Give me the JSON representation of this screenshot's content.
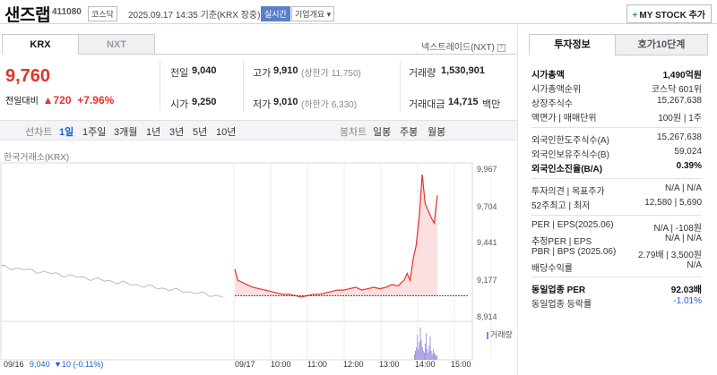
{
  "header": {
    "name": "샌즈랩",
    "code": "411080",
    "market_badge": "코스닥",
    "datetime": "2025.09.17 14:35 기준(KRX 장중)",
    "realtime_badge": "실시간",
    "company_badge": "기업개요 ▾",
    "mystock_label": "MY STOCK 추가"
  },
  "tabs": {
    "krx": "KRX",
    "nxt": "NXT"
  },
  "nxt_link": "넥스트레이드(NXT)",
  "price": {
    "current": "9,760",
    "change_label": "전일대비",
    "change": "▲720",
    "change_pct": "+7.96%"
  },
  "summary": {
    "prev_label": "전일",
    "prev": "9,040",
    "open_label": "시가",
    "open": "9,250",
    "high_label": "고가",
    "high": "9,910",
    "upper_limit": "(상한가 11,750)",
    "low_label": "저가",
    "low": "9,010",
    "lower_limit": "(하한가 6,330)",
    "volume_label": "거래량",
    "volume": "1,530,901",
    "amount_label": "거래대금",
    "amount": "14,715",
    "amount_unit": "백만"
  },
  "periods": {
    "line_label": "선차트",
    "items": [
      "1일",
      "1주일",
      "3개월",
      "1년",
      "3년",
      "5년",
      "10년"
    ],
    "candle_label": "봉차트",
    "candles": [
      "일봉",
      "주봉",
      "월봉"
    ]
  },
  "chart_data": {
    "type": "line",
    "source_label": "한국거래소(KRX)",
    "yticks": [
      "9,967",
      "9,704",
      "9,441",
      "9,177",
      "8,914"
    ],
    "ylim": [
      8914,
      9967
    ],
    "xticks": [
      "09/17",
      "10:00",
      "11:00",
      "12:00",
      "13:00",
      "14:00",
      "15:00"
    ],
    "prev_day_label": "09/16",
    "prev_day_close": "9,040",
    "prev_day_change": "▼10 (-0.11%)",
    "volume_label": "거래량",
    "series": [
      {
        "x": [
          "09:00",
          "09:05",
          "09:10",
          "09:15",
          "09:20",
          "09:25",
          "09:30",
          "09:40",
          "09:50",
          "10:00",
          "10:10",
          "10:20",
          "10:30",
          "10:40",
          "10:50",
          "11:00",
          "11:10",
          "11:20",
          "11:30",
          "11:40",
          "11:50",
          "12:00",
          "12:10",
          "12:20",
          "12:30",
          "12:40",
          "12:50",
          "13:00",
          "13:10",
          "13:20",
          "13:30",
          "13:40",
          "13:45",
          "13:50",
          "13:55",
          "14:00",
          "14:05",
          "14:10",
          "14:15",
          "14:20",
          "14:25",
          "14:30",
          "14:35"
        ],
        "values": [
          9230,
          9150,
          9140,
          9130,
          9120,
          9110,
          9100,
          9090,
          9080,
          9070,
          9060,
          9050,
          9050,
          9040,
          9030,
          9040,
          9050,
          9050,
          9060,
          9070,
          9080,
          9080,
          9090,
          9100,
          9080,
          9090,
          9100,
          9090,
          9100,
          9120,
          9110,
          9150,
          9200,
          9150,
          9300,
          9400,
          9600,
          9910,
          9700,
          9650,
          9600,
          9560,
          9760
        ]
      }
    ]
  },
  "invest": {
    "tab_on": "투자정보",
    "tab_off": "호가10단계",
    "rows1": [
      {
        "l": "시가총액",
        "r": "1,490억원",
        "bold": true
      },
      {
        "l": "시가총액순위",
        "r": "코스닥 601위"
      },
      {
        "l": "상장주식수",
        "r": "15,267,638"
      },
      {
        "l": "액면가 | 매매단위",
        "r": "100원 | 1주"
      }
    ],
    "rows2": [
      {
        "l": "외국인한도주식수(A)",
        "r": "15,267,638"
      },
      {
        "l": "외국인보유주식수(B)",
        "r": "59,024"
      },
      {
        "l": "외국인소진율(B/A)",
        "r": "0.39%",
        "bold": true
      }
    ],
    "rows3": [
      {
        "l": "투자의견 | 목표주가",
        "r": "N/A | N/A"
      },
      {
        "l": "52주최고 | 최저",
        "r": "12,580 | 5,690"
      }
    ],
    "rows4": [
      {
        "l": "PER | EPS(2025.06)",
        "r": "N/A | -108원"
      },
      {
        "l": "추정PER | EPS",
        "r": "N/A | N/A"
      },
      {
        "l": "PBR | BPS (2025.06)",
        "r": "2.79배 | 3,500원"
      },
      {
        "l": "배당수익률",
        "r": "N/A"
      }
    ],
    "rows5": [
      {
        "l": "동일업종 PER",
        "r": "92.03배",
        "bold": true
      },
      {
        "l": "동일업종 등락률",
        "r": "-1.01%",
        "blue": true
      }
    ]
  }
}
